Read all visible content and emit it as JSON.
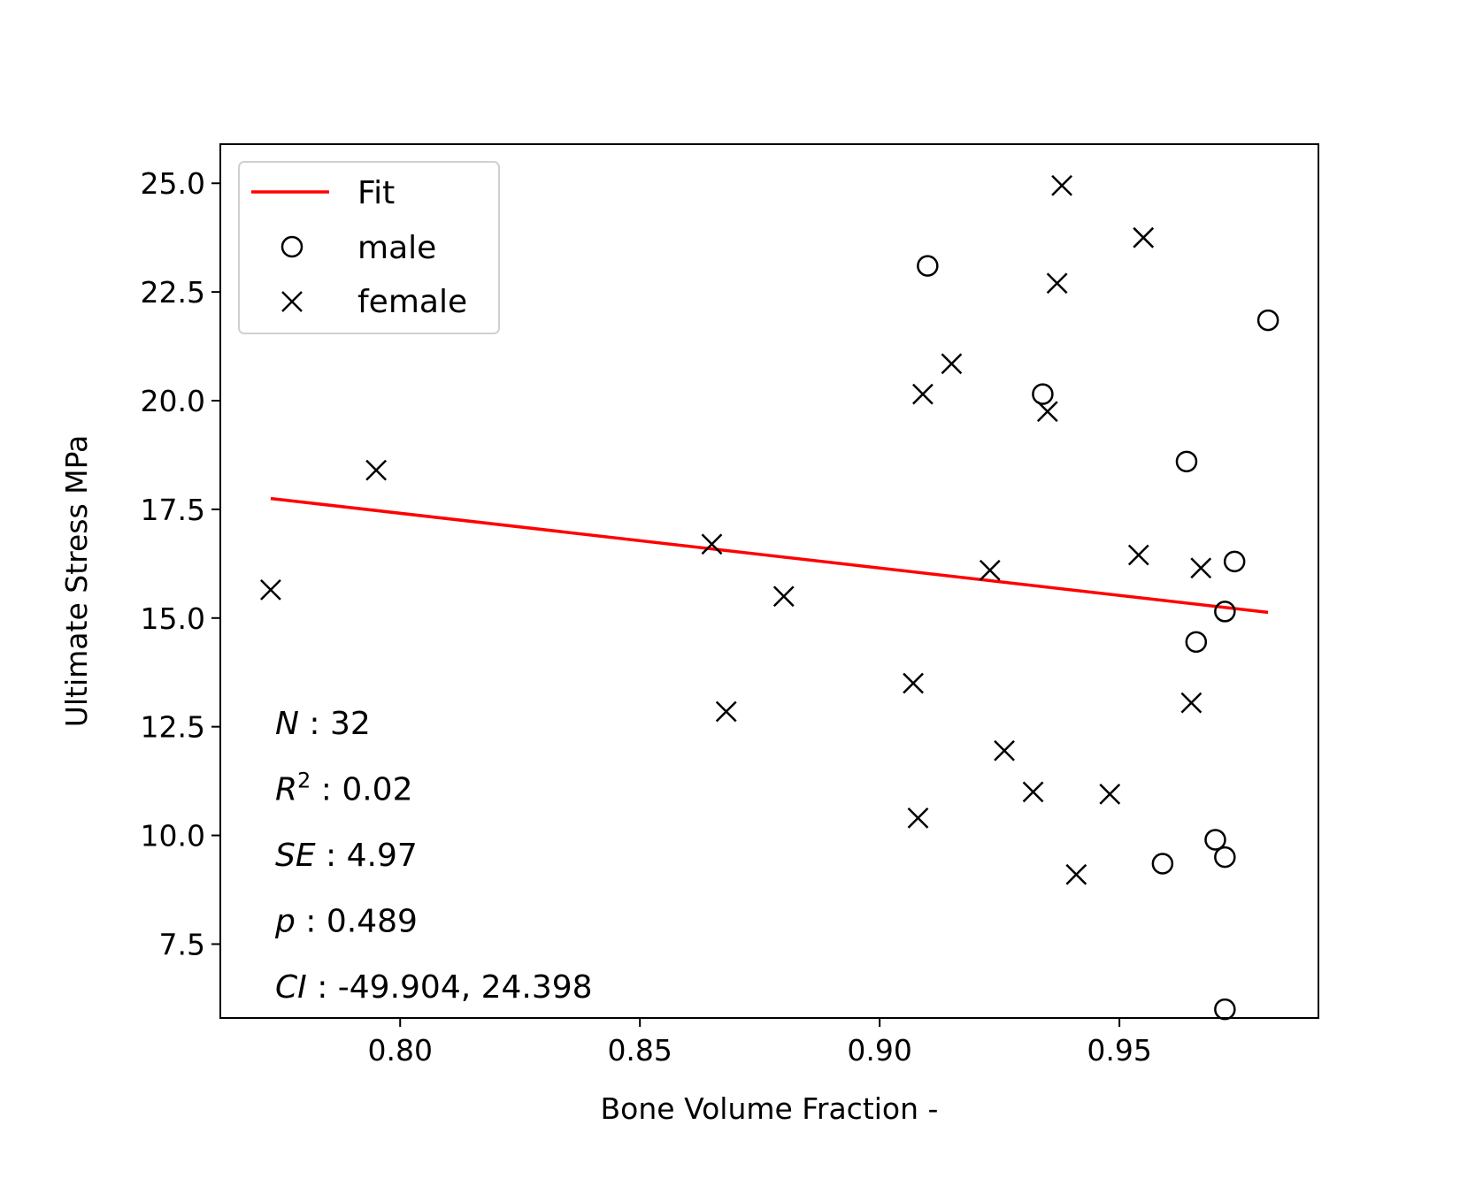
{
  "chart_data": {
    "type": "scatter",
    "title": "",
    "xlabel": "Bone Volume Fraction -",
    "ylabel": "Ultimate Stress MPa",
    "xlim": [
      0.7625,
      0.9915
    ],
    "ylim": [
      5.8,
      25.9
    ],
    "xticks": [
      0.8,
      0.85,
      0.9,
      0.95
    ],
    "xtick_labels": [
      "0.80",
      "0.85",
      "0.90",
      "0.95"
    ],
    "yticks": [
      7.5,
      10.0,
      12.5,
      15.0,
      17.5,
      20.0,
      22.5,
      25.0
    ],
    "ytick_labels": [
      "7.5",
      "10.0",
      "12.5",
      "15.0",
      "17.5",
      "20.0",
      "22.5",
      "25.0"
    ],
    "grid": false,
    "legend_position": "upper-left",
    "colors": {
      "fit": "#ff0000",
      "markers": "#000000"
    },
    "fit": {
      "name": "Fit",
      "x": [
        0.773,
        0.981
      ],
      "y": [
        17.75,
        15.13
      ]
    },
    "series": [
      {
        "name": "male",
        "marker": "circle",
        "x": [
          0.91,
          0.934,
          0.964,
          0.974,
          0.972,
          0.966,
          0.981,
          0.97,
          0.972,
          0.959,
          0.972
        ],
        "y": [
          23.1,
          20.15,
          18.6,
          16.3,
          15.15,
          14.45,
          21.85,
          9.9,
          9.5,
          9.35,
          6.0
        ]
      },
      {
        "name": "female",
        "marker": "x",
        "x": [
          0.773,
          0.795,
          0.865,
          0.868,
          0.88,
          0.907,
          0.908,
          0.909,
          0.915,
          0.923,
          0.926,
          0.932,
          0.935,
          0.937,
          0.938,
          0.941,
          0.948,
          0.954,
          0.955,
          0.965,
          0.967
        ],
        "y": [
          15.65,
          18.4,
          16.7,
          12.85,
          15.5,
          13.5,
          10.4,
          20.15,
          20.85,
          16.1,
          11.95,
          11.0,
          19.75,
          22.7,
          24.95,
          9.1,
          10.95,
          16.45,
          23.75,
          13.05,
          16.15
        ]
      }
    ],
    "annotations": [
      {
        "key": "N",
        "key_suffix": "  ",
        "value": ": 32"
      },
      {
        "key": "R",
        "key_sup": "2",
        "key_suffix": " ",
        "value": ": 0.02"
      },
      {
        "key": "SE",
        "key_suffix": " ",
        "value": ": 4.97"
      },
      {
        "key": "p",
        "key_suffix": " ",
        "value": ": 0.489"
      },
      {
        "key": "CI",
        "key_suffix": " ",
        "value": ": -49.904,  24.398"
      }
    ]
  }
}
